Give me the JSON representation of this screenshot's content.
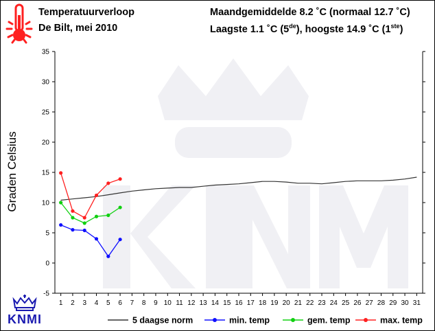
{
  "header": {
    "title_line1": "Temperatuurverloop",
    "title_line2": "De Bilt, mei 2010",
    "stats_line1": "Maandgemiddelde 8.2 ˚C (normaal 12.7 ˚C)",
    "stats_line2_a": "Laagste 1.1 ˚C (5",
    "stats_line2_sup1": "de",
    "stats_line2_b": "), hoogste 14.9 ˚C (1",
    "stats_line2_sup2": "ste",
    "stats_line2_c": ")"
  },
  "logo_text": "KNMI",
  "icons": {
    "thermometer": "thermometer-icon",
    "logo": "knmi-crown-logo"
  },
  "colors": {
    "norm": "#333333",
    "min": "#1010ff",
    "gem": "#10d010",
    "max": "#ff2020",
    "logo": "#1a1ab0",
    "thermometer": "#ff2020"
  },
  "chart_data": {
    "type": "line",
    "title": "",
    "xlabel": "",
    "ylabel": "Graden Celsius",
    "xlim": [
      0.5,
      31.5
    ],
    "ylim": [
      -5,
      35
    ],
    "x_ticks": [
      1,
      2,
      3,
      4,
      5,
      6,
      7,
      8,
      9,
      10,
      11,
      12,
      13,
      14,
      15,
      16,
      17,
      18,
      19,
      20,
      21,
      22,
      23,
      24,
      25,
      26,
      27,
      28,
      29,
      30,
      31
    ],
    "y_ticks": [
      -5,
      0,
      5,
      10,
      15,
      20,
      25,
      30,
      35
    ],
    "legend_position": "bottom",
    "series": [
      {
        "name": "5 daagse norm",
        "color": "#333333",
        "markers": false,
        "x": [
          1,
          2,
          3,
          4,
          5,
          6,
          7,
          8,
          9,
          10,
          11,
          12,
          13,
          14,
          15,
          16,
          17,
          18,
          19,
          20,
          21,
          22,
          23,
          24,
          25,
          26,
          27,
          28,
          29,
          30,
          31
        ],
        "y": [
          10.4,
          10.6,
          10.8,
          11.0,
          11.3,
          11.6,
          11.9,
          12.1,
          12.3,
          12.4,
          12.5,
          12.5,
          12.7,
          12.9,
          13.0,
          13.1,
          13.3,
          13.5,
          13.5,
          13.4,
          13.2,
          13.2,
          13.1,
          13.3,
          13.5,
          13.6,
          13.6,
          13.6,
          13.7,
          13.9,
          14.2
        ]
      },
      {
        "name": "min. temp",
        "color": "#1010ff",
        "markers": true,
        "x": [
          1,
          2,
          3,
          4,
          5,
          6
        ],
        "y": [
          6.3,
          5.5,
          5.4,
          4.0,
          1.1,
          3.9
        ]
      },
      {
        "name": "gem. temp",
        "color": "#10d010",
        "markers": true,
        "x": [
          1,
          2,
          3,
          4,
          5,
          6
        ],
        "y": [
          10.0,
          7.5,
          6.6,
          7.7,
          7.9,
          9.2
        ]
      },
      {
        "name": "max. temp",
        "color": "#ff2020",
        "markers": true,
        "x": [
          1,
          2,
          3,
          4,
          5,
          6
        ],
        "y": [
          14.9,
          8.6,
          7.5,
          11.2,
          13.2,
          13.9
        ]
      }
    ]
  }
}
